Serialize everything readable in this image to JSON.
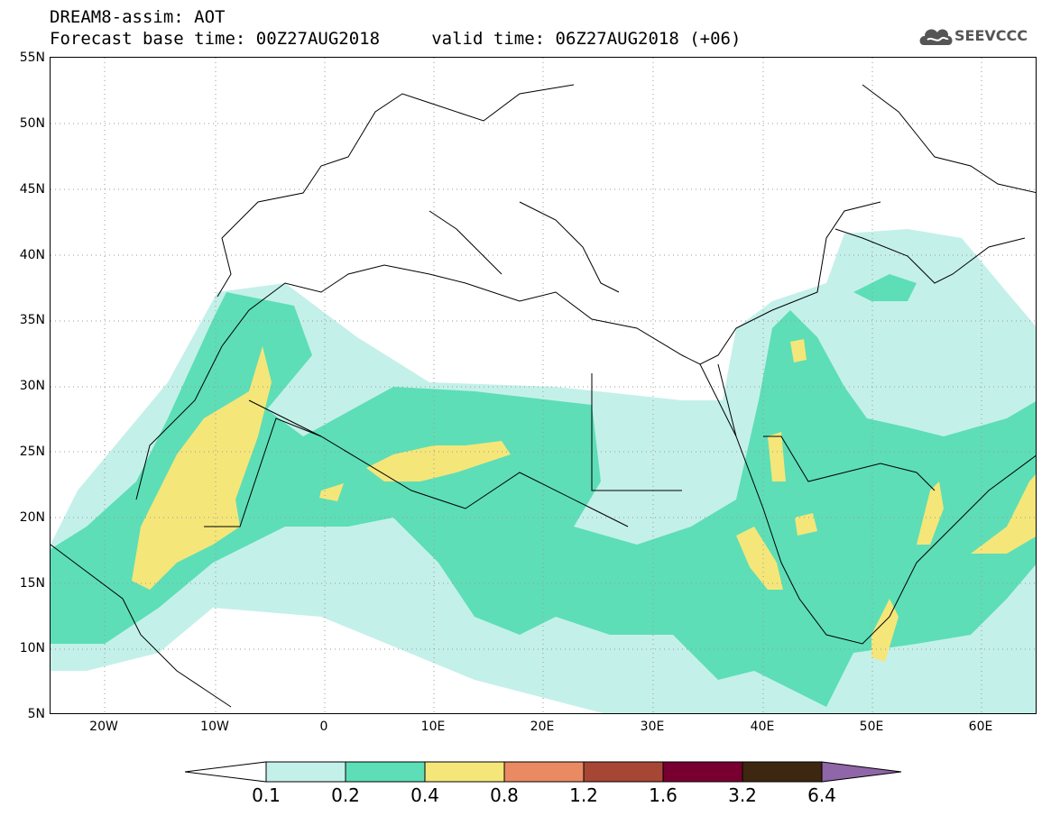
{
  "header": {
    "title_line1": "DREAM8-assim: AOT",
    "title_line2": "Forecast base time: 00Z27AUG2018     valid time: 06Z27AUG2018 (+06)",
    "logo_text": "SEEVCCC"
  },
  "map": {
    "variable": "AOT",
    "lat_labels": [
      "55N",
      "50N",
      "45N",
      "40N",
      "35N",
      "30N",
      "25N",
      "20N",
      "15N",
      "10N",
      "5N"
    ],
    "lon_labels": [
      "20W",
      "10W",
      "0",
      "10E",
      "20E",
      "30E",
      "40E",
      "50E",
      "60E"
    ],
    "colors": {
      "land_outline": "#000000",
      "background": "#ffffff",
      "grid": "#999999"
    }
  },
  "legend": {
    "levels": [
      "0.1",
      "0.2",
      "0.4",
      "0.8",
      "1.2",
      "1.6",
      "3.2",
      "6.4"
    ],
    "colors": [
      "#ffffff",
      "#c4f0ea",
      "#5ddeb6",
      "#f5e67a",
      "#e98a62",
      "#a84636",
      "#780030",
      "#3d2710",
      "#8f66a8"
    ]
  }
}
